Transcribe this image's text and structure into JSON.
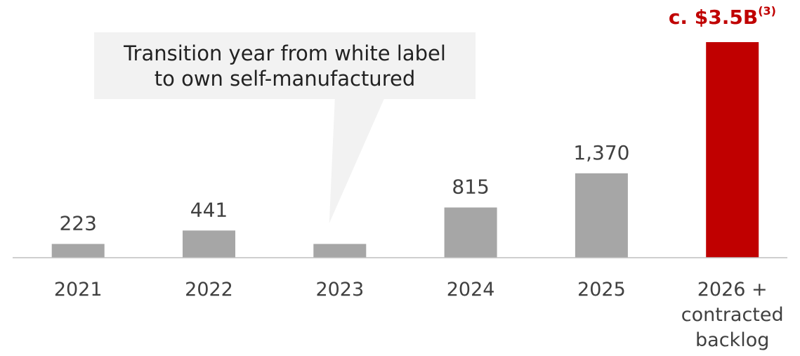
{
  "chart_data": {
    "type": "bar",
    "categories": [
      "2021",
      "2022",
      "2023",
      "2024",
      "2025",
      "2026 + contracted backlog"
    ],
    "category_lines": [
      [
        "2021"
      ],
      [
        "2022"
      ],
      [
        "2023"
      ],
      [
        "2024"
      ],
      [
        "2025"
      ],
      [
        "2026 +",
        "contracted",
        "backlog"
      ]
    ],
    "values": [
      223,
      441,
      223,
      815,
      1370,
      3500
    ],
    "data_labels": [
      "223",
      "441",
      "",
      "815",
      "1,370",
      ""
    ],
    "highlight": {
      "index": 5,
      "label": "c. $3.5B",
      "superscript": "(3)"
    },
    "callout": {
      "lines": [
        "Transition year from white label",
        "to own self-manufactured"
      ],
      "target_category": "2023"
    },
    "ylim": [
      0,
      3500
    ],
    "grid": false,
    "legend": "none"
  },
  "colors": {
    "bar": "#a6a6a6",
    "highlight_bar": "#c00000",
    "callout_fill": "#f2f2f2",
    "axis": "#bfbfbf",
    "text": "#404040",
    "highlight_text": "#c00000"
  }
}
